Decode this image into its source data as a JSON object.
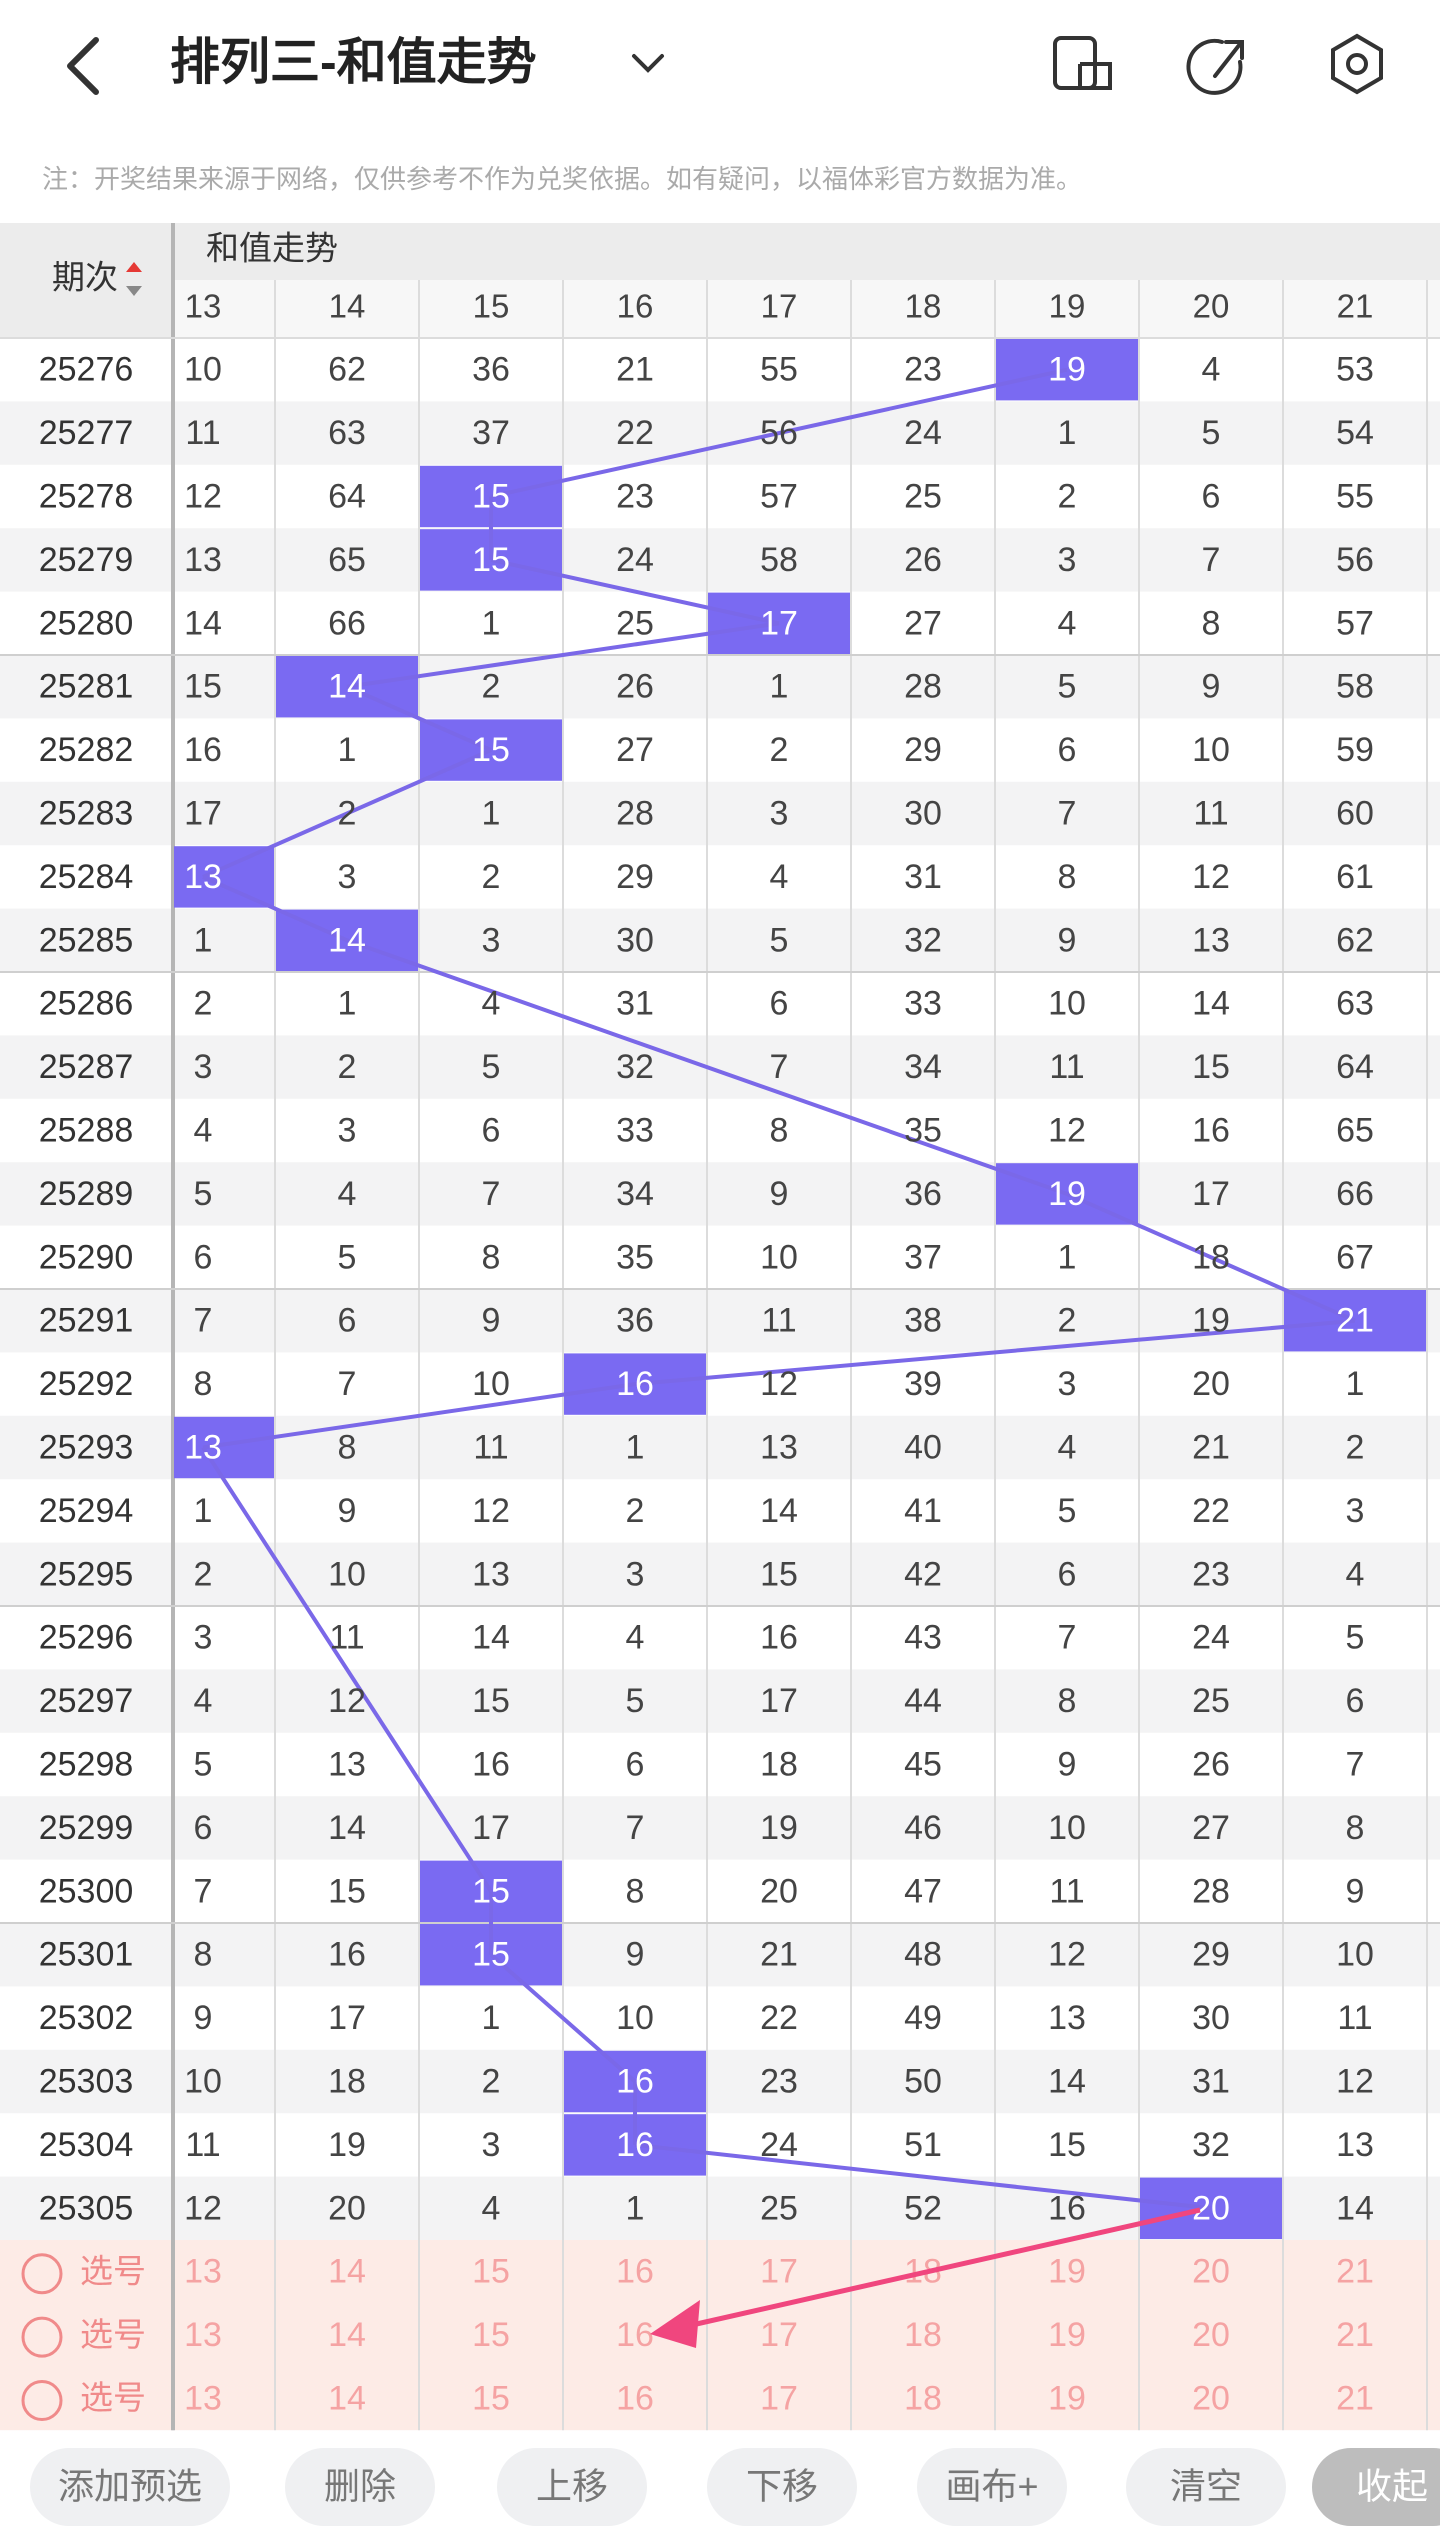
{
  "header": {
    "title": "排列三-和值走势"
  },
  "note": "注：开奖结果来源于网络，仅供参考不作为兑奖依据。如有疑问，以福体彩官方数据为准。",
  "table": {
    "period_header": "期次",
    "group_header": "和值走势",
    "columns": [
      13,
      14,
      15,
      16,
      17,
      18,
      19,
      20,
      21
    ],
    "rows": [
      {
        "period": 25276,
        "cells": [
          10,
          62,
          36,
          21,
          55,
          23,
          19,
          4,
          53
        ],
        "hit": 6
      },
      {
        "period": 25277,
        "cells": [
          11,
          63,
          37,
          22,
          56,
          24,
          1,
          5,
          54
        ],
        "hit": null
      },
      {
        "period": 25278,
        "cells": [
          12,
          64,
          15,
          23,
          57,
          25,
          2,
          6,
          55
        ],
        "hit": 2
      },
      {
        "period": 25279,
        "cells": [
          13,
          65,
          15,
          24,
          58,
          26,
          3,
          7,
          56
        ],
        "hit": 2
      },
      {
        "period": 25280,
        "cells": [
          14,
          66,
          1,
          25,
          17,
          27,
          4,
          8,
          57
        ],
        "hit": 4
      },
      {
        "period": 25281,
        "cells": [
          15,
          14,
          2,
          26,
          1,
          28,
          5,
          9,
          58
        ],
        "hit": 1
      },
      {
        "period": 25282,
        "cells": [
          16,
          1,
          15,
          27,
          2,
          29,
          6,
          10,
          59
        ],
        "hit": 2
      },
      {
        "period": 25283,
        "cells": [
          17,
          2,
          1,
          28,
          3,
          30,
          7,
          11,
          60
        ],
        "hit": null
      },
      {
        "period": 25284,
        "cells": [
          13,
          3,
          2,
          29,
          4,
          31,
          8,
          12,
          61
        ],
        "hit": 0
      },
      {
        "period": 25285,
        "cells": [
          1,
          14,
          3,
          30,
          5,
          32,
          9,
          13,
          62
        ],
        "hit": 1
      },
      {
        "period": 25286,
        "cells": [
          2,
          1,
          4,
          31,
          6,
          33,
          10,
          14,
          63
        ],
        "hit": null
      },
      {
        "period": 25287,
        "cells": [
          3,
          2,
          5,
          32,
          7,
          34,
          11,
          15,
          64
        ],
        "hit": null
      },
      {
        "period": 25288,
        "cells": [
          4,
          3,
          6,
          33,
          8,
          35,
          12,
          16,
          65
        ],
        "hit": null
      },
      {
        "period": 25289,
        "cells": [
          5,
          4,
          7,
          34,
          9,
          36,
          19,
          17,
          66
        ],
        "hit": 6
      },
      {
        "period": 25290,
        "cells": [
          6,
          5,
          8,
          35,
          10,
          37,
          1,
          18,
          67
        ],
        "hit": null
      },
      {
        "period": 25291,
        "cells": [
          7,
          6,
          9,
          36,
          11,
          38,
          2,
          19,
          21
        ],
        "hit": 8
      },
      {
        "period": 25292,
        "cells": [
          8,
          7,
          10,
          16,
          12,
          39,
          3,
          20,
          1
        ],
        "hit": 3
      },
      {
        "period": 25293,
        "cells": [
          13,
          8,
          11,
          1,
          13,
          40,
          4,
          21,
          2
        ],
        "hit": 0
      },
      {
        "period": 25294,
        "cells": [
          1,
          9,
          12,
          2,
          14,
          41,
          5,
          22,
          3
        ],
        "hit": null
      },
      {
        "period": 25295,
        "cells": [
          2,
          10,
          13,
          3,
          15,
          42,
          6,
          23,
          4
        ],
        "hit": null
      },
      {
        "period": 25296,
        "cells": [
          3,
          11,
          14,
          4,
          16,
          43,
          7,
          24,
          5
        ],
        "hit": null
      },
      {
        "period": 25297,
        "cells": [
          4,
          12,
          15,
          5,
          17,
          44,
          8,
          25,
          6
        ],
        "hit": null
      },
      {
        "period": 25298,
        "cells": [
          5,
          13,
          16,
          6,
          18,
          45,
          9,
          26,
          7
        ],
        "hit": null
      },
      {
        "period": 25299,
        "cells": [
          6,
          14,
          17,
          7,
          19,
          46,
          10,
          27,
          8
        ],
        "hit": null
      },
      {
        "period": 25300,
        "cells": [
          7,
          15,
          15,
          8,
          20,
          47,
          11,
          28,
          9
        ],
        "hit": 2
      },
      {
        "period": 25301,
        "cells": [
          8,
          16,
          15,
          9,
          21,
          48,
          12,
          29,
          10
        ],
        "hit": 2
      },
      {
        "period": 25302,
        "cells": [
          9,
          17,
          1,
          10,
          22,
          49,
          13,
          30,
          11
        ],
        "hit": null
      },
      {
        "period": 25303,
        "cells": [
          10,
          18,
          2,
          16,
          23,
          50,
          14,
          31,
          12
        ],
        "hit": 3
      },
      {
        "period": 25304,
        "cells": [
          11,
          19,
          3,
          16,
          24,
          51,
          15,
          32,
          13
        ],
        "hit": 3
      },
      {
        "period": 25305,
        "cells": [
          12,
          20,
          4,
          1,
          25,
          52,
          16,
          20,
          14
        ],
        "hit": 7
      }
    ],
    "select_rows": [
      {
        "label": "选号",
        "cells": [
          13,
          14,
          15,
          16,
          17,
          18,
          19,
          20,
          21
        ]
      },
      {
        "label": "选号",
        "cells": [
          13,
          14,
          15,
          16,
          17,
          18,
          19,
          20,
          21
        ]
      },
      {
        "label": "选号",
        "cells": [
          13,
          14,
          15,
          16,
          17,
          18,
          19,
          20,
          21
        ]
      }
    ]
  },
  "buttons": [
    "添加预选",
    "删除",
    "上移",
    "下移",
    "画布+",
    "清空",
    "收起"
  ]
}
